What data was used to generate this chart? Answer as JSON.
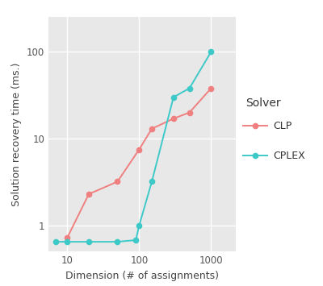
{
  "clp_x": [
    10,
    20,
    50,
    100,
    150,
    300,
    500,
    1000
  ],
  "clp_y": [
    0.72,
    2.3,
    3.2,
    7.5,
    13.0,
    17.0,
    20.0,
    38.0
  ],
  "cplex_x": [
    7,
    10,
    20,
    50,
    90,
    100,
    150,
    300,
    500,
    1000
  ],
  "cplex_y": [
    0.65,
    0.65,
    0.65,
    0.65,
    0.68,
    1.0,
    3.2,
    30.0,
    38.0,
    100.0
  ],
  "clp_color": "#F08080",
  "cplex_color": "#3EC9C9",
  "plot_bg": "#E8E8E8",
  "fig_bg": "#FFFFFF",
  "xlabel": "Dimension (# of assignments)",
  "ylabel": "Solution recovery time (ms.)",
  "xlim": [
    5.5,
    2200
  ],
  "ylim": [
    0.5,
    250
  ],
  "legend_title": "Solver",
  "xticks": [
    10,
    100,
    1000
  ],
  "xtick_labels": [
    "10",
    "100",
    "1000"
  ],
  "yticks": [
    1,
    10,
    100
  ],
  "ytick_labels": [
    "1",
    "10",
    "100"
  ],
  "marker": "o",
  "markersize": 4.5,
  "linewidth": 1.4
}
